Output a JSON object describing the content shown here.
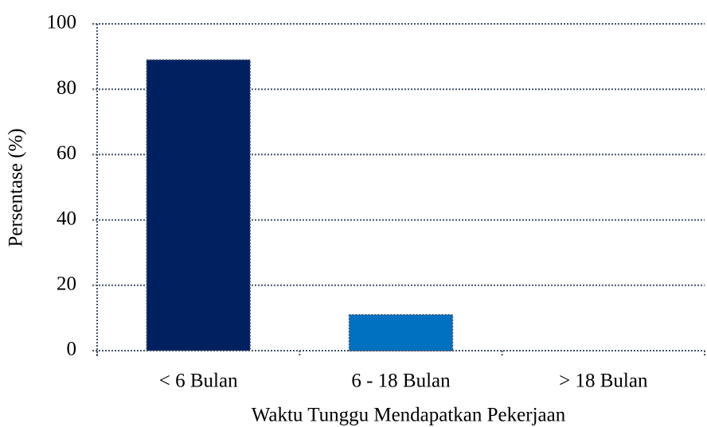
{
  "chart_data": {
    "type": "bar",
    "categories": [
      "< 6 Bulan",
      "6 - 18 Bulan",
      "> 18 Bulan"
    ],
    "values": [
      89,
      11,
      0
    ],
    "colors": [
      "#002060",
      "#0070c0",
      "#0070c0"
    ],
    "xlabel": "Waktu Tunggu Mendapatkan Pekerjaan",
    "ylabel": "Persentase (%)",
    "ylim": [
      0,
      100
    ],
    "yticks": [
      0,
      20,
      40,
      60,
      80,
      100
    ],
    "grid": true
  }
}
